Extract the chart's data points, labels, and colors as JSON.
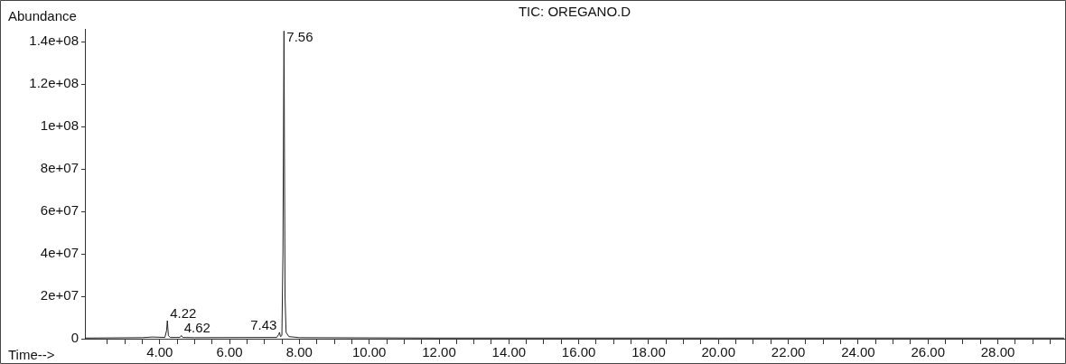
{
  "chart_data": {
    "type": "line",
    "title": "TIC: OREGANO.D",
    "xlabel": "Time-->",
    "ylabel": "Abundance",
    "x": [
      1.86,
      3.5,
      3.8,
      4.15,
      4.2,
      4.22,
      4.25,
      4.3,
      4.58,
      4.62,
      4.66,
      5.0,
      7.35,
      7.41,
      7.43,
      7.46,
      7.5,
      7.53,
      7.56,
      7.59,
      7.62,
      7.7,
      8.0,
      12,
      20,
      29.9
    ],
    "series": [
      {
        "color": "#222222",
        "values": [
          300000,
          500000,
          800000,
          600000,
          4000000,
          8500000,
          1500000,
          600000,
          600000,
          1500000,
          600000,
          500000,
          600000,
          2000000,
          3000000,
          1000000,
          1500000,
          40000000,
          145000000,
          20000000,
          3000000,
          1000000,
          500000,
          300000,
          300000,
          300000
        ]
      }
    ],
    "xlim": [
      1.86,
      29.9
    ],
    "ylim": [
      0,
      146000000
    ],
    "xticks": [
      {
        "value": 2.5,
        "label": null
      },
      {
        "value": 3,
        "label": null
      },
      {
        "value": 3.5,
        "label": null
      },
      {
        "value": 4,
        "label": "4.00"
      },
      {
        "value": 4.5,
        "label": null
      },
      {
        "value": 5,
        "label": null
      },
      {
        "value": 5.5,
        "label": null
      },
      {
        "value": 6,
        "label": "6.00"
      },
      {
        "value": 6.5,
        "label": null
      },
      {
        "value": 7,
        "label": null
      },
      {
        "value": 7.5,
        "label": null
      },
      {
        "value": 8,
        "label": "8.00"
      },
      {
        "value": 8.5,
        "label": null
      },
      {
        "value": 9,
        "label": null
      },
      {
        "value": 9.5,
        "label": null
      },
      {
        "value": 10,
        "label": "10.00"
      },
      {
        "value": 10.5,
        "label": null
      },
      {
        "value": 11,
        "label": null
      },
      {
        "value": 11.5,
        "label": null
      },
      {
        "value": 12,
        "label": "12.00"
      },
      {
        "value": 12.5,
        "label": null
      },
      {
        "value": 13,
        "label": null
      },
      {
        "value": 13.5,
        "label": null
      },
      {
        "value": 14,
        "label": "14.00"
      },
      {
        "value": 14.5,
        "label": null
      },
      {
        "value": 15,
        "label": null
      },
      {
        "value": 15.5,
        "label": null
      },
      {
        "value": 16,
        "label": "16.00"
      },
      {
        "value": 16.5,
        "label": null
      },
      {
        "value": 17,
        "label": null
      },
      {
        "value": 17.5,
        "label": null
      },
      {
        "value": 18,
        "label": "18.00"
      },
      {
        "value": 18.5,
        "label": null
      },
      {
        "value": 19,
        "label": null
      },
      {
        "value": 19.5,
        "label": null
      },
      {
        "value": 20,
        "label": "20.00"
      },
      {
        "value": 20.5,
        "label": null
      },
      {
        "value": 21,
        "label": null
      },
      {
        "value": 21.5,
        "label": null
      },
      {
        "value": 22,
        "label": "22.00"
      },
      {
        "value": 22.5,
        "label": null
      },
      {
        "value": 23,
        "label": null
      },
      {
        "value": 23.5,
        "label": null
      },
      {
        "value": 24,
        "label": "24.00"
      },
      {
        "value": 24.5,
        "label": null
      },
      {
        "value": 25,
        "label": null
      },
      {
        "value": 25.5,
        "label": null
      },
      {
        "value": 26,
        "label": "26.00"
      },
      {
        "value": 26.5,
        "label": null
      },
      {
        "value": 27,
        "label": null
      },
      {
        "value": 27.5,
        "label": null
      },
      {
        "value": 28,
        "label": "28.00"
      },
      {
        "value": 28.5,
        "label": null
      },
      {
        "value": 29,
        "label": null
      },
      {
        "value": 29.5,
        "label": null
      }
    ],
    "yticks": [
      0,
      {
        "value": 20000000,
        "label": "2e+07"
      },
      {
        "value": 40000000,
        "label": "4e+07"
      },
      {
        "value": 60000000,
        "label": "6e+07"
      },
      {
        "value": 80000000,
        "label": "8e+07"
      },
      {
        "value": 100000000,
        "label": "1e+08"
      },
      {
        "value": 120000000,
        "label": "1.2e+08"
      },
      {
        "value": 140000000,
        "label": "1.4e+08"
      }
    ],
    "annotations": [
      {
        "text": "4.22",
        "x": 4.22,
        "y": 8500000
      },
      {
        "text": "4.62",
        "x": 4.62,
        "y": 1500000
      },
      {
        "text": "7.43",
        "x": 7.43,
        "y": 3000000
      },
      {
        "text": "7.56",
        "x": 7.56,
        "y": 145000000
      }
    ],
    "grid": false,
    "legend": false,
    "marker": "none",
    "line_style": "solid"
  }
}
